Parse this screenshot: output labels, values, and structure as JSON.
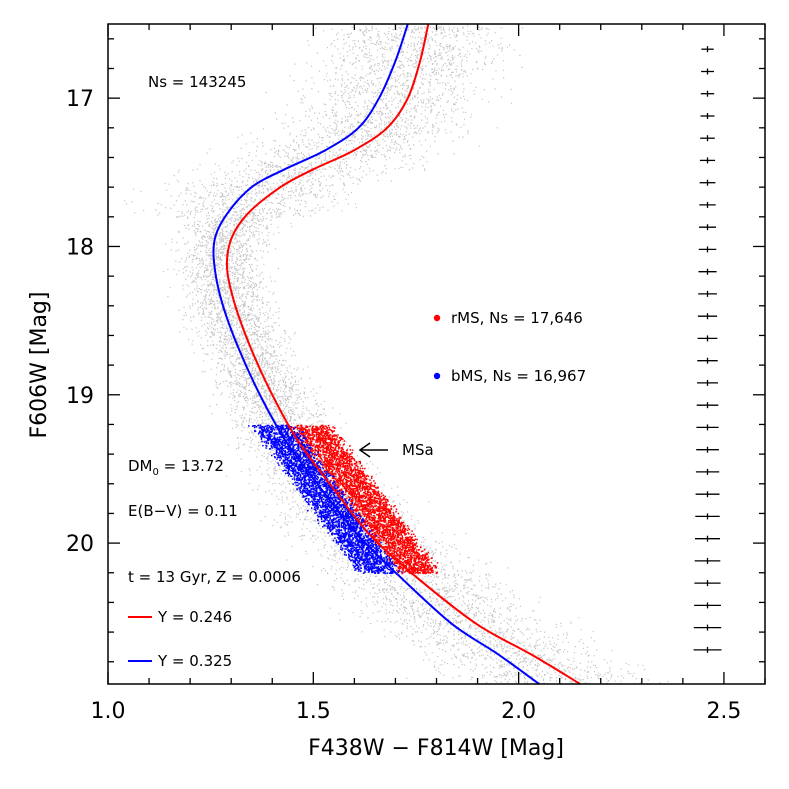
{
  "chart_data": {
    "type": "scatter",
    "xlabel": "F438W − F814W [Mag]",
    "ylabel": "F606W [Mag]",
    "xlim": [
      1.0,
      2.6
    ],
    "ylim": [
      20.95,
      16.5
    ],
    "y_inverted": true,
    "xticks": [
      1.0,
      1.5,
      2.0,
      2.5
    ],
    "xtick_labels": [
      "1.0",
      "1.5",
      "2.0",
      "2.5"
    ],
    "yticks": [
      17,
      18,
      19,
      20
    ],
    "ytick_labels": [
      "17",
      "18",
      "19",
      "20"
    ],
    "grid": false,
    "colors": {
      "field": "#c4c4c4",
      "rms": "#ff0000",
      "bms": "#0000ff",
      "axes": "#000000"
    },
    "series": [
      {
        "name": "rMS, Ns = 17,646",
        "kind": "points",
        "color": "#ff0000",
        "mag_range": [
          19.2,
          20.2
        ],
        "color_at_bright": 1.49,
        "color_at_faint": 1.76,
        "width": 0.09
      },
      {
        "name": "bMS, Ns = 16,967",
        "kind": "points",
        "color": "#0000ff",
        "mag_range": [
          19.2,
          20.2
        ],
        "color_at_bright": 1.4,
        "color_at_faint": 1.66,
        "width": 0.09
      },
      {
        "name": "Y = 0.246",
        "kind": "isochrone",
        "color": "#ff0000",
        "points": [
          [
            1.78,
            16.5
          ],
          [
            1.76,
            16.75
          ],
          [
            1.73,
            17.0
          ],
          [
            1.68,
            17.2
          ],
          [
            1.6,
            17.35
          ],
          [
            1.5,
            17.48
          ],
          [
            1.42,
            17.6
          ],
          [
            1.34,
            17.78
          ],
          [
            1.3,
            17.95
          ],
          [
            1.29,
            18.15
          ],
          [
            1.31,
            18.4
          ],
          [
            1.35,
            18.7
          ],
          [
            1.4,
            19.0
          ],
          [
            1.46,
            19.3
          ],
          [
            1.54,
            19.6
          ],
          [
            1.64,
            19.95
          ],
          [
            1.76,
            20.25
          ],
          [
            1.9,
            20.55
          ],
          [
            2.03,
            20.75
          ],
          [
            2.15,
            20.95
          ]
        ]
      },
      {
        "name": "Y = 0.325",
        "kind": "isochrone",
        "color": "#0000ff",
        "points": [
          [
            1.73,
            16.5
          ],
          [
            1.7,
            16.75
          ],
          [
            1.66,
            17.0
          ],
          [
            1.61,
            17.2
          ],
          [
            1.53,
            17.35
          ],
          [
            1.43,
            17.48
          ],
          [
            1.35,
            17.6
          ],
          [
            1.29,
            17.78
          ],
          [
            1.26,
            17.95
          ],
          [
            1.26,
            18.15
          ],
          [
            1.28,
            18.4
          ],
          [
            1.32,
            18.7
          ],
          [
            1.37,
            19.0
          ],
          [
            1.43,
            19.3
          ],
          [
            1.51,
            19.6
          ],
          [
            1.61,
            19.95
          ],
          [
            1.72,
            20.25
          ],
          [
            1.84,
            20.55
          ],
          [
            1.95,
            20.75
          ],
          [
            2.05,
            20.95
          ]
        ]
      }
    ],
    "error_bars": {
      "x": 2.46,
      "y_start": 16.67,
      "y_step": 0.15,
      "count": 28,
      "half_width_start": 0.015,
      "half_width_end": 0.034
    },
    "annotations": {
      "ns_total": "Ns =  143245",
      "rms": "rMS, Ns = 17,646",
      "bms": "bMS, Ns = 16,967",
      "msa": "MSa",
      "dm_prefix": "DM",
      "dm_sub": "0",
      "dm_value": " = 13.72",
      "ebv": "E(B−V) = 0.11",
      "age_z": "t = 13 Gyr, Z = 0.0006",
      "y1": "Y = 0.246",
      "y2": "Y = 0.325"
    }
  }
}
